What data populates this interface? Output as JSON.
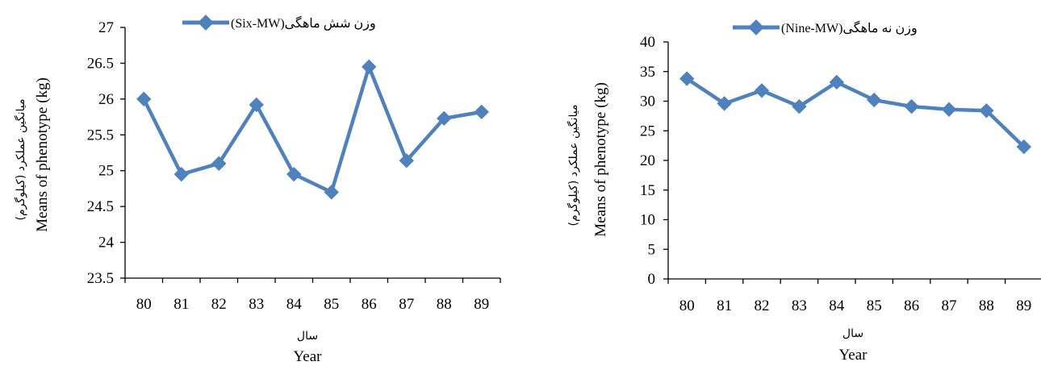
{
  "chart_data": [
    {
      "type": "line",
      "legend": "وزن شش ماهگی(Six-MW)",
      "ylabel_fa": "میانگین عملکرد (کیلوگرم)",
      "ylabel": "Means of phenotype (kg)",
      "xlabel_fa": "سال",
      "xlabel": "Year",
      "categories": [
        "80",
        "81",
        "82",
        "83",
        "84",
        "85",
        "86",
        "87",
        "88",
        "89"
      ],
      "series": [
        {
          "name": "وزن شش ماهگی(Six-MW)",
          "color": "#4f81bd",
          "values": [
            26.0,
            24.95,
            25.1,
            25.92,
            24.95,
            24.7,
            26.45,
            25.14,
            25.73,
            25.82
          ]
        }
      ],
      "ylim": [
        23.5,
        27
      ],
      "yticks": [
        "23.5",
        "24",
        "24.5",
        "25",
        "25.5",
        "26",
        "26.5",
        "27"
      ]
    },
    {
      "type": "line",
      "legend": "وزن نه ماهگی(Nine-MW)",
      "ylabel_fa": "میانگین عملکرد (کیلوگرم)",
      "ylabel": "Means of phenotype (kg)",
      "xlabel_fa": "سال",
      "xlabel": "Year",
      "categories": [
        "80",
        "81",
        "82",
        "83",
        "84",
        "85",
        "86",
        "87",
        "88",
        "89"
      ],
      "series": [
        {
          "name": "وزن نه ماهگی(Nine-MW)",
          "color": "#4f81bd",
          "values": [
            33.8,
            29.6,
            31.8,
            29.1,
            33.2,
            30.2,
            29.1,
            28.6,
            28.4,
            22.3
          ]
        }
      ],
      "ylim": [
        0,
        40
      ],
      "yticks": [
        "0",
        "5",
        "10",
        "15",
        "20",
        "25",
        "30",
        "35",
        "40"
      ]
    }
  ]
}
